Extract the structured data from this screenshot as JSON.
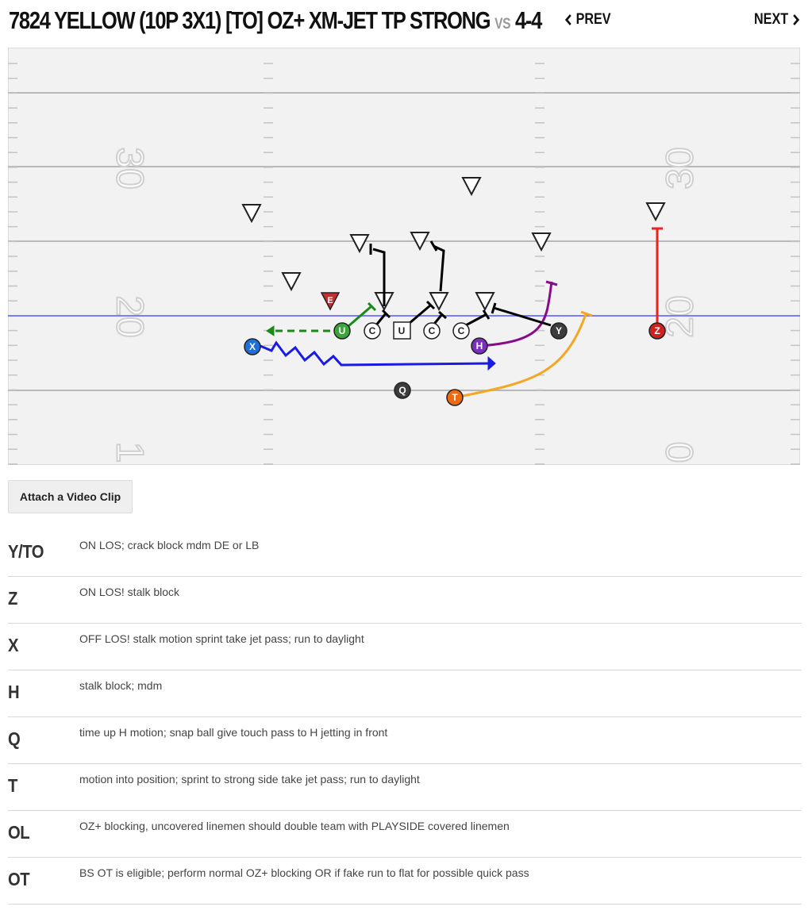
{
  "play": {
    "title": "7824 YELLOW (10P 3X1) [TO] OZ+ XM-JET TP STRONG",
    "vs_label": "VS",
    "defense": "4-4"
  },
  "nav": {
    "prev_label": "PREV",
    "next_label": "NEXT"
  },
  "field": {
    "yard_numbers": [
      "30",
      "20",
      "1",
      "30",
      "20",
      "0"
    ],
    "line_of_scrimmage_color": "#7b7bff",
    "players": [
      {
        "label": "X",
        "color": "#1e6fd9"
      },
      {
        "label": "U",
        "color": "#3aa63a"
      },
      {
        "label": "C",
        "color": "#ffffff"
      },
      {
        "label": "U",
        "color": "#ffffff"
      },
      {
        "label": "C",
        "color": "#ffffff"
      },
      {
        "label": "C",
        "color": "#ffffff"
      },
      {
        "label": "H",
        "color": "#7a2fbf"
      },
      {
        "label": "Y",
        "color": "#3c3c3c"
      },
      {
        "label": "Z",
        "color": "#cc2222"
      },
      {
        "label": "Q",
        "color": "#3c3c3c"
      },
      {
        "label": "T",
        "color": "#ee6a10"
      }
    ],
    "defender_label": "E",
    "route_colors": {
      "X": "#1a1ae6",
      "U": "#1a8a1a",
      "H": "#8a0b8a",
      "T": "#f5a623",
      "Z": "#ee2020",
      "blocks": "#000000"
    }
  },
  "attach_button_label": "Attach a Video Clip",
  "notes": [
    {
      "position": "Y/TO",
      "text": "ON LOS; crack block mdm DE or LB"
    },
    {
      "position": "Z",
      "text": "ON LOS! stalk block"
    },
    {
      "position": "X",
      "text": "OFF LOS! stalk motion sprint take jet pass; run to daylight"
    },
    {
      "position": "H",
      "text": "stalk block; mdm"
    },
    {
      "position": "Q",
      "text": "time up H motion; snap ball give touch pass to H jetting in front"
    },
    {
      "position": "T",
      "text": "motion into position; sprint to strong side take jet pass; run to daylight"
    },
    {
      "position": "OL",
      "text": "OZ+ blocking, uncovered linemen should double team with PLAYSIDE covered linemen"
    },
    {
      "position": "OT",
      "text": "BS OT is eligible; perform normal OZ+ blocking OR if fake run to flat for possible quick pass"
    }
  ]
}
